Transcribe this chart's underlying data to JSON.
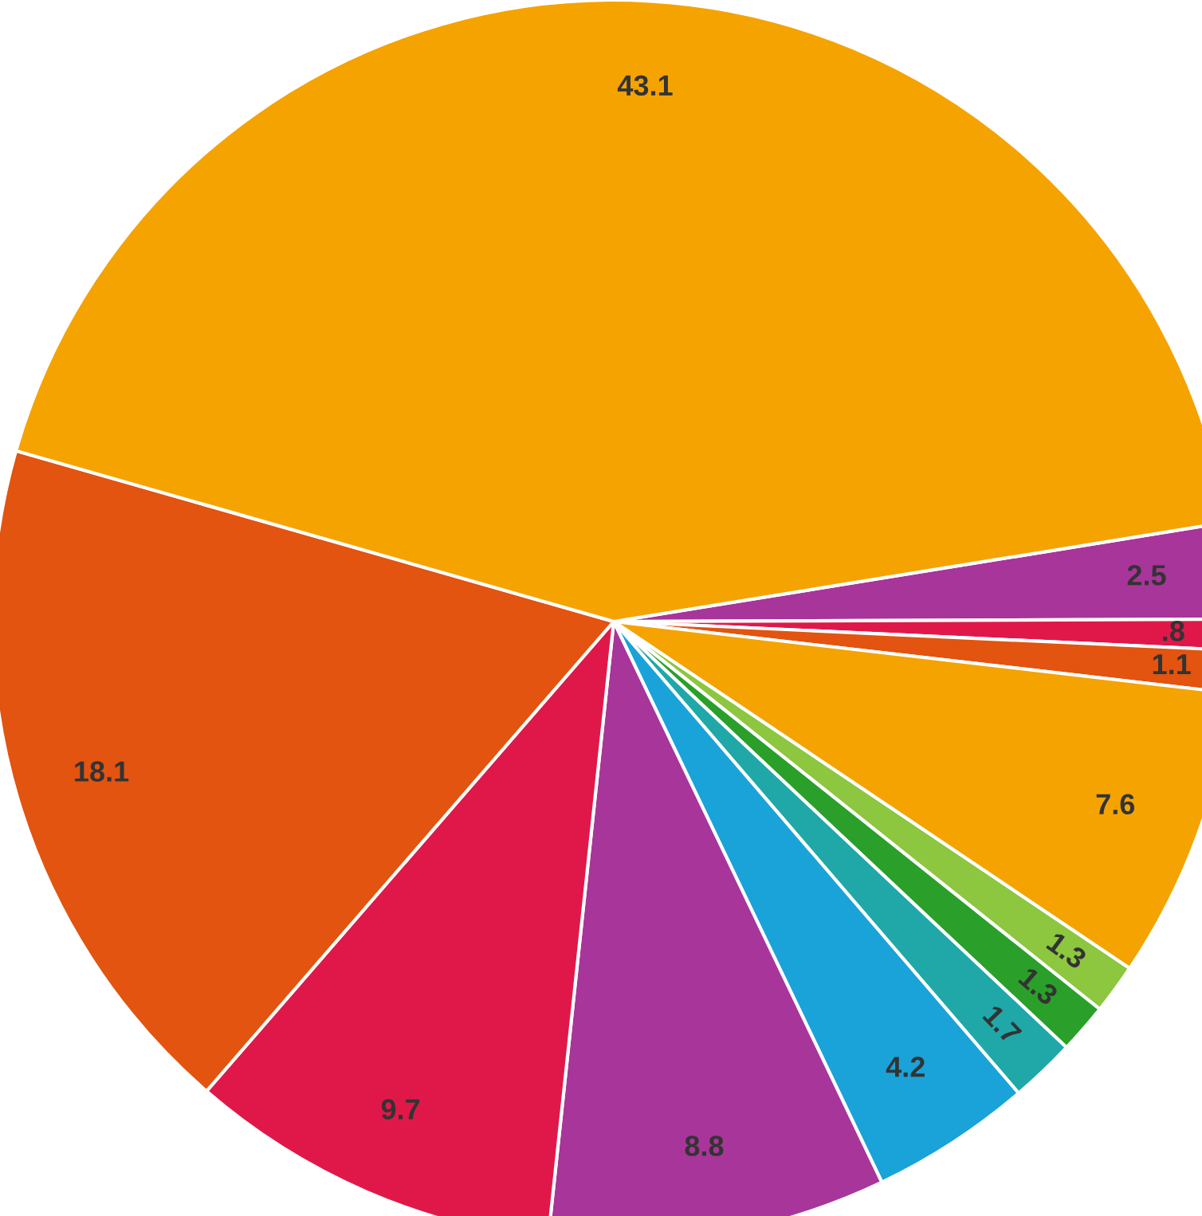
{
  "chart_data": {
    "type": "pie",
    "categories": [
      null,
      null,
      null,
      null,
      null,
      null,
      null,
      null,
      null,
      null,
      null,
      null
    ],
    "values": [
      2.5,
      0.8,
      1.1,
      7.6,
      1.3,
      1.3,
      1.7,
      4.2,
      8.8,
      9.7,
      18.1,
      43.1
    ],
    "value_labels": [
      "2.5",
      ".8",
      "1.1",
      "7.6",
      "1.3",
      "1.3",
      "1.7",
      "4.2",
      "8.8",
      "9.7",
      "18.1",
      "43.1"
    ],
    "colors": [
      "#a8359a",
      "#e0184a",
      "#e2540f",
      "#f5a300",
      "#8dc63f",
      "#2aa02a",
      "#20a8a8",
      "#1aa3d8",
      "#a8359a",
      "#e0184a",
      "#e2540f",
      "#f5a300"
    ],
    "legend": false
  }
}
